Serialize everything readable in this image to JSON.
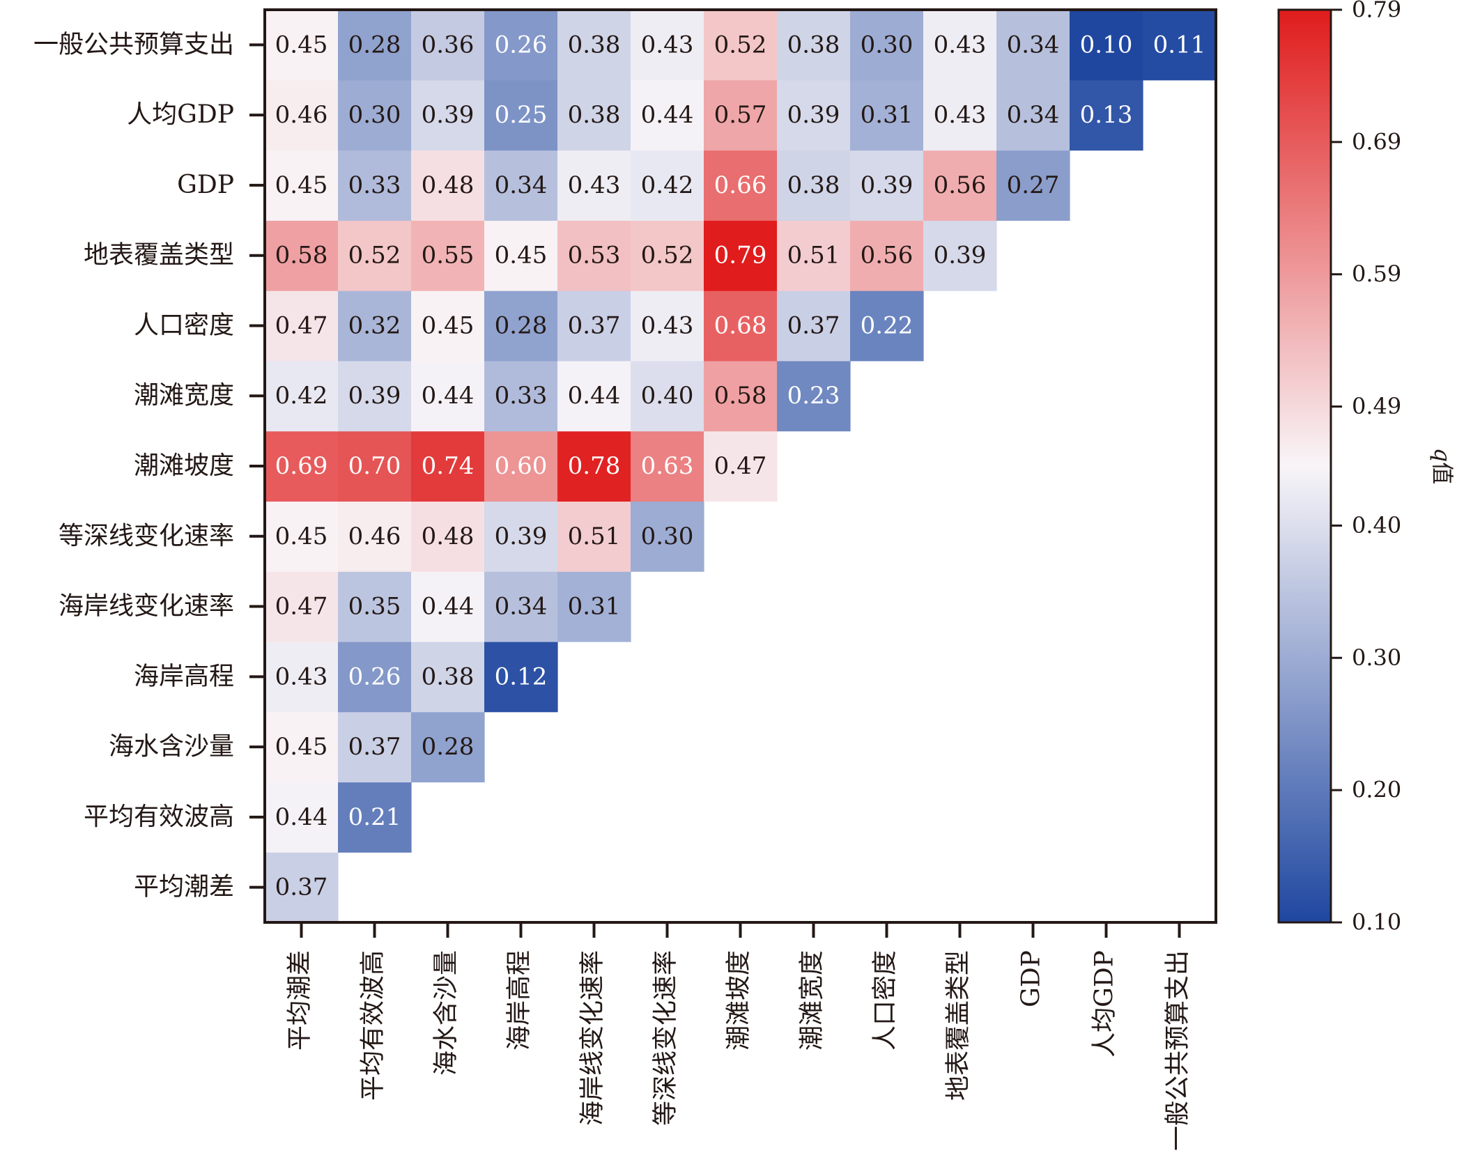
{
  "chart_data": {
    "type": "heatmap",
    "categories": [
      "平均潮差",
      "平均有效波高",
      "海水含沙量",
      "海岸高程",
      "海岸线变化速率",
      "等深线变化速率",
      "潮滩坡度",
      "潮滩宽度",
      "人口密度",
      "地表覆盖类型",
      "GDP",
      "人均GDP",
      "一般公共预算支出"
    ],
    "matrix": [
      [
        0.37,
        null,
        null,
        null,
        null,
        null,
        null,
        null,
        null,
        null,
        null,
        null,
        null
      ],
      [
        0.44,
        0.21,
        null,
        null,
        null,
        null,
        null,
        null,
        null,
        null,
        null,
        null,
        null
      ],
      [
        0.45,
        0.37,
        0.28,
        null,
        null,
        null,
        null,
        null,
        null,
        null,
        null,
        null,
        null
      ],
      [
        0.43,
        0.26,
        0.38,
        0.12,
        null,
        null,
        null,
        null,
        null,
        null,
        null,
        null,
        null
      ],
      [
        0.47,
        0.35,
        0.44,
        0.34,
        0.31,
        null,
        null,
        null,
        null,
        null,
        null,
        null,
        null
      ],
      [
        0.45,
        0.46,
        0.48,
        0.39,
        0.51,
        0.3,
        null,
        null,
        null,
        null,
        null,
        null,
        null
      ],
      [
        0.69,
        0.7,
        0.74,
        0.6,
        0.78,
        0.63,
        0.47,
        null,
        null,
        null,
        null,
        null,
        null
      ],
      [
        0.42,
        0.39,
        0.44,
        0.33,
        0.44,
        0.4,
        0.58,
        0.23,
        null,
        null,
        null,
        null,
        null
      ],
      [
        0.47,
        0.32,
        0.45,
        0.28,
        0.37,
        0.43,
        0.68,
        0.37,
        0.22,
        null,
        null,
        null,
        null
      ],
      [
        0.58,
        0.52,
        0.55,
        0.45,
        0.53,
        0.52,
        0.79,
        0.51,
        0.56,
        0.39,
        null,
        null,
        null
      ],
      [
        0.45,
        0.33,
        0.48,
        0.34,
        0.43,
        0.42,
        0.66,
        0.38,
        0.39,
        0.56,
        0.27,
        null,
        null
      ],
      [
        0.46,
        0.3,
        0.39,
        0.25,
        0.38,
        0.44,
        0.57,
        0.39,
        0.31,
        0.43,
        0.34,
        0.13,
        null
      ],
      [
        0.45,
        0.28,
        0.36,
        0.26,
        0.38,
        0.43,
        0.52,
        0.38,
        0.3,
        0.43,
        0.34,
        0.1,
        0.11
      ]
    ],
    "colorbar": {
      "label_italic": "q",
      "label_rest": "值",
      "range": [
        0.1,
        0.79
      ],
      "ticks": [
        "0.79",
        "0.69",
        "0.59",
        "0.49",
        "0.40",
        "0.30",
        "0.20",
        "0.10"
      ],
      "colors": {
        "low": "#1f47a0",
        "mid": "#f8f5f8",
        "high": "#e01c1c"
      }
    }
  }
}
